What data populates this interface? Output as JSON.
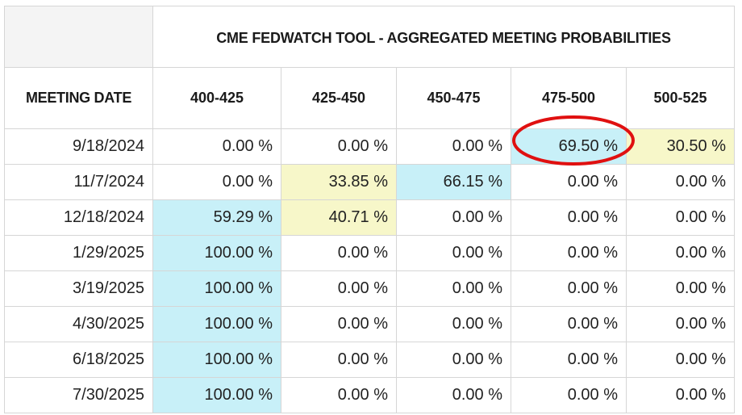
{
  "table": {
    "title": "CME FEDWATCH TOOL - AGGREGATED MEETING PROBABILITIES",
    "date_header": "MEETING DATE",
    "columns": [
      "400-425",
      "425-450",
      "450-475",
      "475-500",
      "500-525"
    ],
    "rows": [
      {
        "date": "9/18/2024",
        "values": [
          "0.00 %",
          "0.00 %",
          "0.00 %",
          "69.50 %",
          "30.50 %"
        ],
        "highlight": [
          "none",
          "none",
          "none",
          "blue",
          "yellow"
        ]
      },
      {
        "date": "11/7/2024",
        "values": [
          "0.00 %",
          "33.85 %",
          "66.15 %",
          "0.00 %",
          "0.00 %"
        ],
        "highlight": [
          "none",
          "yellow",
          "blue",
          "none",
          "none"
        ]
      },
      {
        "date": "12/18/2024",
        "values": [
          "59.29 %",
          "40.71 %",
          "0.00 %",
          "0.00 %",
          "0.00 %"
        ],
        "highlight": [
          "blue",
          "yellow",
          "none",
          "none",
          "none"
        ]
      },
      {
        "date": "1/29/2025",
        "values": [
          "100.00 %",
          "0.00 %",
          "0.00 %",
          "0.00 %",
          "0.00 %"
        ],
        "highlight": [
          "blue",
          "none",
          "none",
          "none",
          "none"
        ]
      },
      {
        "date": "3/19/2025",
        "values": [
          "100.00 %",
          "0.00 %",
          "0.00 %",
          "0.00 %",
          "0.00 %"
        ],
        "highlight": [
          "blue",
          "none",
          "none",
          "none",
          "none"
        ]
      },
      {
        "date": "4/30/2025",
        "values": [
          "100.00 %",
          "0.00 %",
          "0.00 %",
          "0.00 %",
          "0.00 %"
        ],
        "highlight": [
          "blue",
          "none",
          "none",
          "none",
          "none"
        ]
      },
      {
        "date": "6/18/2025",
        "values": [
          "100.00 %",
          "0.00 %",
          "0.00 %",
          "0.00 %",
          "0.00 %"
        ],
        "highlight": [
          "blue",
          "none",
          "none",
          "none",
          "none"
        ]
      },
      {
        "date": "7/30/2025",
        "values": [
          "100.00 %",
          "0.00 %",
          "0.00 %",
          "0.00 %",
          "0.00 %"
        ],
        "highlight": [
          "blue",
          "none",
          "none",
          "none",
          "none"
        ]
      }
    ]
  },
  "annotation": {
    "shape": "ellipse",
    "target": "9/18/2024 475-500 cell",
    "color": "#e01010"
  },
  "colors": {
    "blue_highlight": "#c8f0f8",
    "yellow_highlight": "#f7f7c9",
    "border": "#d6d6d6"
  }
}
